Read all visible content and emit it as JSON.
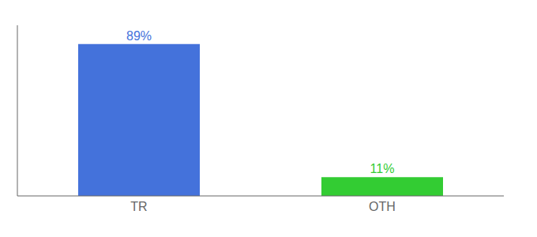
{
  "chart_data": {
    "type": "bar",
    "categories": [
      "TR",
      "OTH"
    ],
    "values": [
      89,
      11
    ],
    "value_labels": [
      "89%",
      "11%"
    ],
    "colors": [
      "#4472db",
      "#33cc33"
    ],
    "ylim": [
      0,
      100
    ],
    "data_labels": true,
    "tick_labels": "x"
  }
}
